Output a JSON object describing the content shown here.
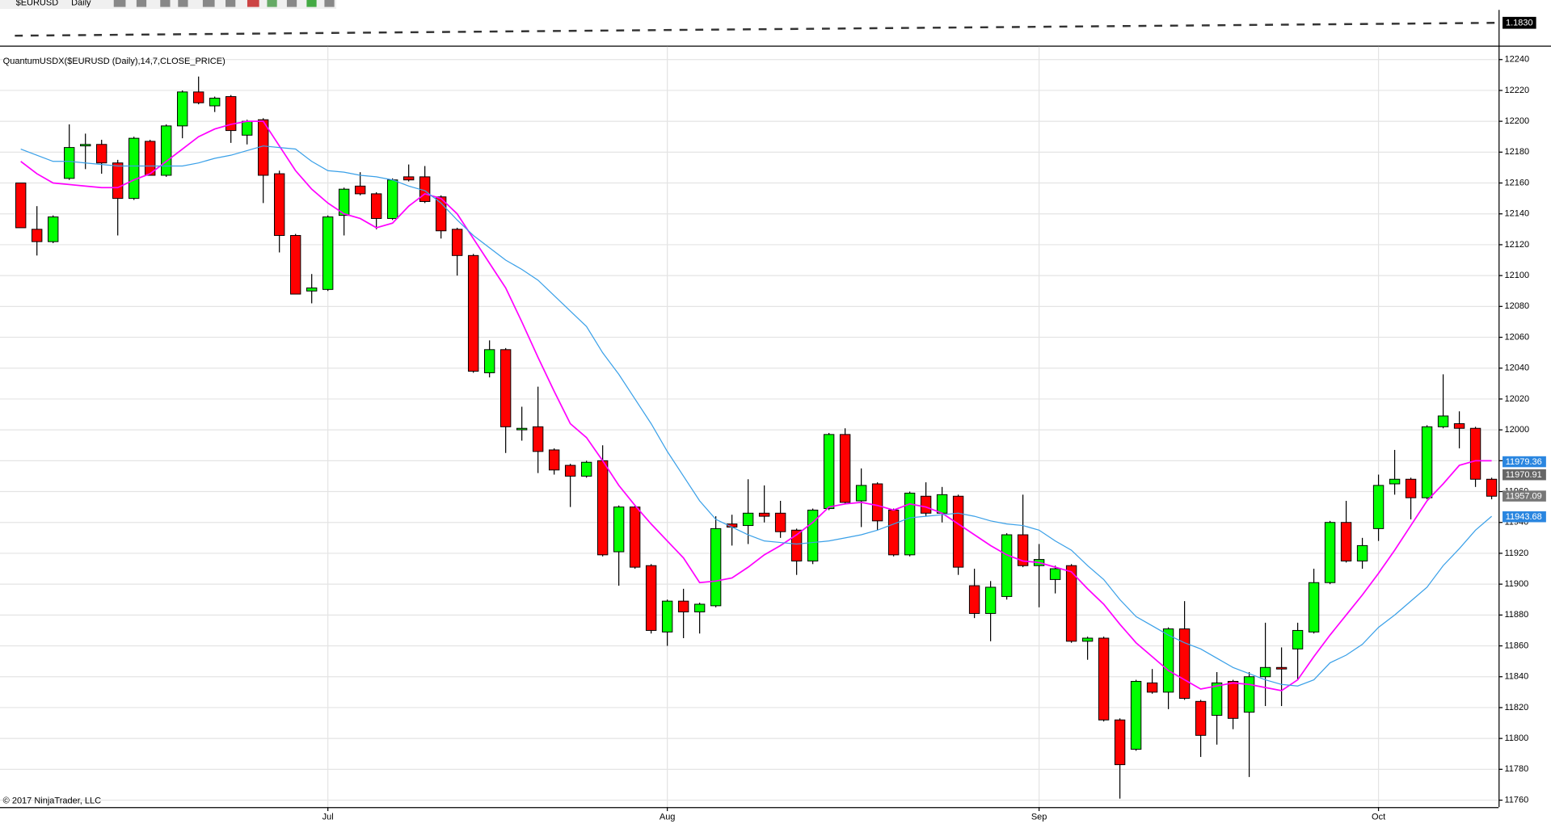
{
  "chart_data": {
    "type": "candlestick",
    "toolbar": {
      "instrument": "$EURUSD",
      "interval": "Daily"
    },
    "upper_panel_label": "1.1830",
    "title": "QuantumUSDX($EURUSD (Daily),14,7,CLOSE_PRICE)",
    "copyright": "© 2017 NinjaTrader, LLC",
    "categories": [
      null,
      null,
      null,
      null,
      null,
      null,
      null,
      null,
      null,
      null,
      null,
      null,
      null,
      null,
      null,
      null,
      null,
      null,
      null,
      "Jul",
      null,
      null,
      null,
      null,
      null,
      null,
      null,
      null,
      null,
      null,
      null,
      null,
      null,
      null,
      null,
      null,
      null,
      null,
      null,
      null,
      "Aug",
      null,
      null,
      null,
      null,
      null,
      null,
      null,
      null,
      null,
      null,
      null,
      null,
      null,
      null,
      null,
      null,
      null,
      null,
      null,
      null,
      null,
      null,
      "Sep",
      null,
      null,
      null,
      null,
      null,
      null,
      null,
      null,
      null,
      null,
      null,
      null,
      null,
      null,
      null,
      null,
      null,
      null,
      null,
      null,
      "Oct",
      null,
      null,
      null,
      null,
      null,
      null,
      null
    ],
    "open": [
      12160,
      12130,
      12122,
      12163,
      12185,
      12185,
      12173,
      12150,
      12187,
      12165,
      12197,
      12219,
      12210,
      12216,
      12191,
      12201,
      12166,
      12126,
      12090,
      12091,
      12139,
      12158,
      12153,
      12137,
      12164,
      12164,
      12151,
      12130,
      12113,
      12037,
      12052,
      12001,
      12002,
      11987,
      11977,
      11970,
      11980,
      11921,
      11950,
      11912,
      11869,
      11889,
      11882,
      11886,
      11939,
      11938,
      11946,
      11946,
      11935,
      11915,
      11949,
      11997,
      11954,
      11965,
      11948,
      11919,
      11957,
      11946,
      11957,
      11899,
      11881,
      11892,
      11932,
      11912,
      11903,
      11912,
      11863,
      11865,
      11812,
      11793,
      11836,
      11830,
      11871,
      11824,
      11815,
      11837,
      11817,
      11840,
      11846,
      11858,
      11869,
      11901,
      11940,
      11915,
      11936,
      11965,
      11968,
      11956,
      12002,
      12004,
      12001,
      11968
    ],
    "high": [
      12160,
      12145,
      12139,
      12198,
      12192,
      12188,
      12175,
      12190,
      12188,
      12198,
      12220,
      12229,
      12216,
      12217,
      12201,
      12202,
      12168,
      12127,
      12101,
      12139,
      12157,
      12167,
      12154,
      12163,
      12172,
      12171,
      12152,
      12131,
      12114,
      12058,
      12053,
      12015,
      12028,
      11988,
      11978,
      11980,
      11990,
      11951,
      11951,
      11913,
      11890,
      11897,
      11888,
      11944,
      11945,
      11968,
      11964,
      11954,
      11936,
      11949,
      11998,
      12001,
      11975,
      11966,
      11949,
      11960,
      11966,
      11963,
      11958,
      11910,
      11902,
      11933,
      11958,
      11926,
      11912,
      11913,
      11866,
      11866,
      11813,
      11838,
      11845,
      11872,
      11889,
      11825,
      11843,
      11838,
      11843,
      11875,
      11859,
      11875,
      11910,
      11941,
      11954,
      11930,
      11971,
      11987,
      11969,
      12003,
      12036,
      12012,
      12002,
      11969
    ],
    "low": [
      12131,
      12113,
      12121,
      12162,
      12169,
      12166,
      12126,
      12149,
      12165,
      12164,
      12189,
      12211,
      12206,
      12186,
      12185,
      12147,
      12115,
      12088,
      12082,
      12090,
      12126,
      12152,
      12130,
      12136,
      12161,
      12147,
      12124,
      12100,
      12037,
      12034,
      11985,
      11993,
      11972,
      11971,
      11950,
      11969,
      11918,
      11899,
      11910,
      11868,
      11860,
      11865,
      11868,
      11885,
      11925,
      11926,
      11940,
      11930,
      11906,
      11913,
      11948,
      11952,
      11937,
      11935,
      11918,
      11918,
      11944,
      11940,
      11906,
      11878,
      11863,
      11890,
      11911,
      11885,
      11894,
      11862,
      11851,
      11811,
      11761,
      11792,
      11829,
      11819,
      11825,
      11788,
      11796,
      11806,
      11775,
      11821,
      11821,
      11838,
      11868,
      11900,
      11914,
      11910,
      11928,
      11958,
      11942,
      11955,
      12001,
      11988,
      11963,
      11955
    ],
    "close": [
      12131,
      12122,
      12138,
      12183,
      12185,
      12173,
      12150,
      12189,
      12165,
      12197,
      12219,
      12212,
      12215,
      12194,
      12200,
      12165,
      12126,
      12088,
      12092,
      12138,
      12156,
      12153,
      12137,
      12162,
      12162,
      12148,
      12129,
      12113,
      12038,
      12052,
      12002,
      12001,
      11986,
      11974,
      11970,
      11979,
      11919,
      11950,
      11911,
      11870,
      11889,
      11882,
      11887,
      11936,
      11937,
      11946,
      11944,
      11934,
      11915,
      11948,
      11997,
      11953,
      11964,
      11941,
      11919,
      11959,
      11946,
      11958,
      11911,
      11881,
      11898,
      11932,
      11912,
      11916,
      11910,
      11863,
      11865,
      11812,
      11783,
      11837,
      11830,
      11871,
      11826,
      11802,
      11836,
      11813,
      11840,
      11846,
      11845,
      11870,
      11901,
      11940,
      11915,
      11925,
      11964,
      11968,
      11956,
      12002,
      12009,
      12001,
      11968,
      11957
    ],
    "up_color": "#00ff00",
    "down_color": "#ff0000",
    "series": [
      {
        "color": "#ff00ff",
        "values": [
          12174,
          12166,
          12160,
          12159,
          12158,
          12157,
          12157,
          12162,
          12166,
          12174,
          12182,
          12190,
          12195,
          12198,
          12200,
          12200,
          12184,
          12168,
          12156,
          12147,
          12140,
          12137,
          12131,
          12134,
          12145,
          12153,
          12150,
          12140,
          12124,
          12108,
          12092,
          12070,
          12047,
          12025,
          12004,
          11995,
          11980,
          11964,
          11951,
          11939,
          11928,
          11917,
          11901,
          11902,
          11904,
          11911,
          11919,
          11925,
          11932,
          11940,
          11950,
          11952,
          11953,
          11951,
          11948,
          11952,
          11950,
          11946,
          11939,
          11932,
          11925,
          11919,
          11915,
          11914,
          11911,
          11908,
          11897,
          11887,
          11874,
          11862,
          11853,
          11844,
          11838,
          11832,
          11834,
          11836,
          11835,
          11833,
          11831,
          11838,
          11853,
          11867,
          11880,
          11893,
          11907,
          11922,
          11938,
          11954,
          11965,
          11977,
          11980,
          11980
        ]
      },
      {
        "color": "#3aa0e8",
        "values": [
          12182,
          12178,
          12174,
          12174,
          12173,
          12172,
          12171,
          12171,
          12171,
          12171,
          12171,
          12173,
          12176,
          12178,
          12181,
          12184,
          12183,
          12182,
          12174,
          12168,
          12167,
          12165,
          12164,
          12162,
          12158,
          12155,
          12147,
          12136,
          12126,
          12118,
          12110,
          12104,
          12097,
          12087,
          12077,
          12067,
          12050,
          12036,
          12020,
          12004,
          11986,
          11970,
          11954,
          11942,
          11937,
          11932,
          11928,
          11927,
          11926,
          11927,
          11928,
          11930,
          11932,
          11935,
          11939,
          11943,
          11944,
          11945,
          11946,
          11944,
          11941,
          11939,
          11938,
          11935,
          11928,
          11922,
          11912,
          11903,
          11890,
          11879,
          11873,
          11867,
          11862,
          11858,
          11852,
          11846,
          11842,
          11838,
          11835,
          11834,
          11838,
          11849,
          11854,
          11861,
          11872,
          11880,
          11889,
          11898,
          11912,
          11923,
          11935,
          11944
        ]
      }
    ],
    "last_values": [
      11979.36,
      11970.91,
      11957.09,
      11943.68
    ],
    "last_value_colors": [
      "#2a86e0",
      "#666666",
      "#777777",
      "#2a86e0"
    ],
    "ylim": [
      11755.5,
      12248.4
    ],
    "yticks": [
      11760,
      11780,
      11800,
      11820,
      11840,
      11860,
      11880,
      11900,
      11920,
      11940,
      11960,
      11980,
      12000,
      12020,
      12040,
      12060,
      12080,
      12100,
      12120,
      12140,
      12160,
      12180,
      12200,
      12220,
      12240
    ],
    "grid": true
  }
}
